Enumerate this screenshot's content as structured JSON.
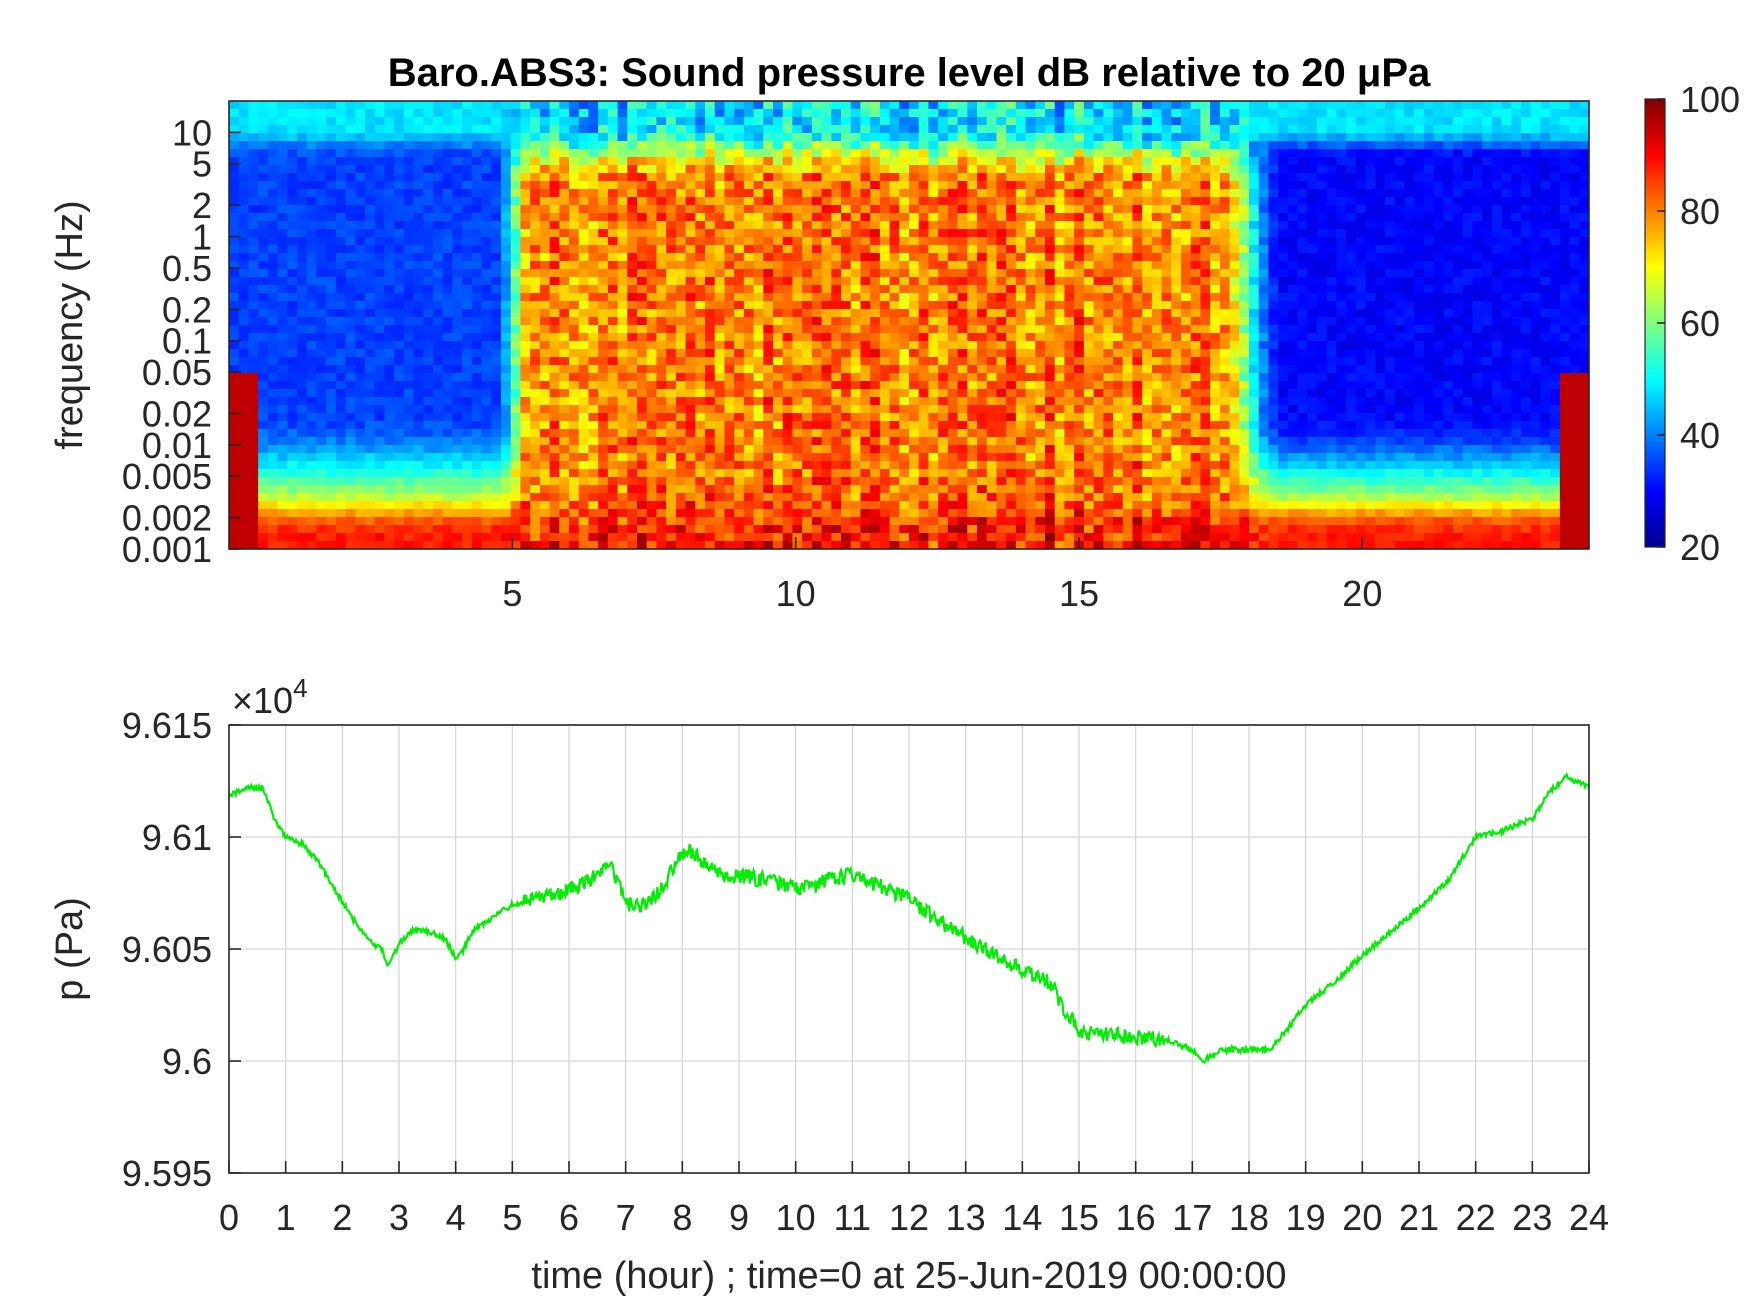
{
  "chart_data": [
    {
      "type": "heatmap",
      "title": "Baro.ABS3: Sound pressure level dB relative to 20 μPa",
      "xlabel": "",
      "ylabel": "frequency (Hz)",
      "x_ticks": [
        5,
        10,
        15,
        20
      ],
      "xlim": [
        0,
        24
      ],
      "y_scale": "log",
      "y_ticks": [
        "10",
        "5",
        "2",
        "1",
        "0.5",
        "0.2",
        "0.1",
        "0.05",
        "0.02",
        "0.01",
        "0.005",
        "0.002",
        "0.001"
      ],
      "ylim": [
        0.001,
        20
      ],
      "colormap": "jet",
      "colorbar": {
        "ticks": [
          20,
          40,
          60,
          80,
          100
        ],
        "range": [
          20,
          100
        ]
      },
      "grid": false,
      "description_levels": {
        "hours_0_to_5_mid_freq_db": 35,
        "hours_5_to_18_mid_freq_db": 80,
        "hours_18_to_24_mid_freq_db": 30,
        "lowest_freq_band_db": 88,
        "top_freq_band_db": 48
      }
    },
    {
      "type": "line",
      "title": "",
      "xlabel": "time (hour) ; time=0 at 25-Jun-2019 00:00:00",
      "ylabel": "p (Pa)",
      "exponent_label": "×10",
      "exponent_power": "4",
      "x_ticks": [
        0,
        1,
        2,
        3,
        4,
        5,
        6,
        7,
        8,
        9,
        10,
        11,
        12,
        13,
        14,
        15,
        16,
        17,
        18,
        19,
        20,
        21,
        22,
        23,
        24
      ],
      "y_ticks": [
        "9.615",
        "9.61",
        "9.605",
        "9.6",
        "9.595"
      ],
      "xlim": [
        0,
        24
      ],
      "ylim": [
        9.595,
        9.615
      ],
      "grid": true,
      "series": [
        {
          "color": "#00ee00",
          "x": [
            0,
            0.3,
            0.6,
            0.8,
            1.0,
            1.3,
            1.6,
            1.9,
            2.2,
            2.5,
            2.7,
            2.8,
            3.0,
            3.2,
            3.5,
            3.8,
            4.0,
            4.1,
            4.3,
            4.6,
            5.0,
            5.4,
            5.8,
            6.2,
            6.5,
            6.7,
            6.9,
            7.0,
            7.3,
            7.6,
            7.9,
            8.1,
            8.4,
            8.8,
            9.2,
            9.6,
            10.0,
            10.3,
            10.7,
            11.0,
            11.5,
            12.0,
            12.5,
            13.0,
            13.5,
            14.0,
            14.5,
            14.7,
            15.0,
            15.5,
            16.0,
            16.5,
            17.0,
            17.2,
            17.5,
            18.0,
            18.4,
            18.7,
            19.0,
            19.5,
            20.0,
            20.5,
            21.0,
            21.5,
            22.0,
            22.5,
            23.0,
            23.3,
            23.6,
            24.0
          ],
          "y": [
            9.6118,
            9.6122,
            9.6122,
            9.6108,
            9.61,
            9.6097,
            9.6088,
            9.6075,
            9.6063,
            9.6053,
            9.605,
            9.6042,
            9.6052,
            9.6058,
            9.6058,
            9.6055,
            9.6046,
            9.6048,
            9.6058,
            9.6063,
            9.607,
            9.6072,
            9.6075,
            9.6079,
            9.6083,
            9.6088,
            9.6078,
            9.607,
            9.607,
            9.6075,
            9.609,
            9.6095,
            9.6088,
            9.6083,
            9.6082,
            9.608,
            9.6077,
            9.6078,
            9.6082,
            9.6083,
            9.6078,
            9.6072,
            9.6063,
            9.6055,
            9.6048,
            9.604,
            9.6035,
            9.6025,
            9.6013,
            9.6012,
            9.601,
            9.601,
            9.6005,
            9.6,
            9.6005,
            9.6005,
            9.6006,
            9.6015,
            9.6025,
            9.6035,
            9.6047,
            9.6058,
            9.6068,
            9.608,
            9.61,
            9.6103,
            9.6108,
            9.612,
            9.6127,
            9.6122
          ]
        }
      ]
    }
  ]
}
